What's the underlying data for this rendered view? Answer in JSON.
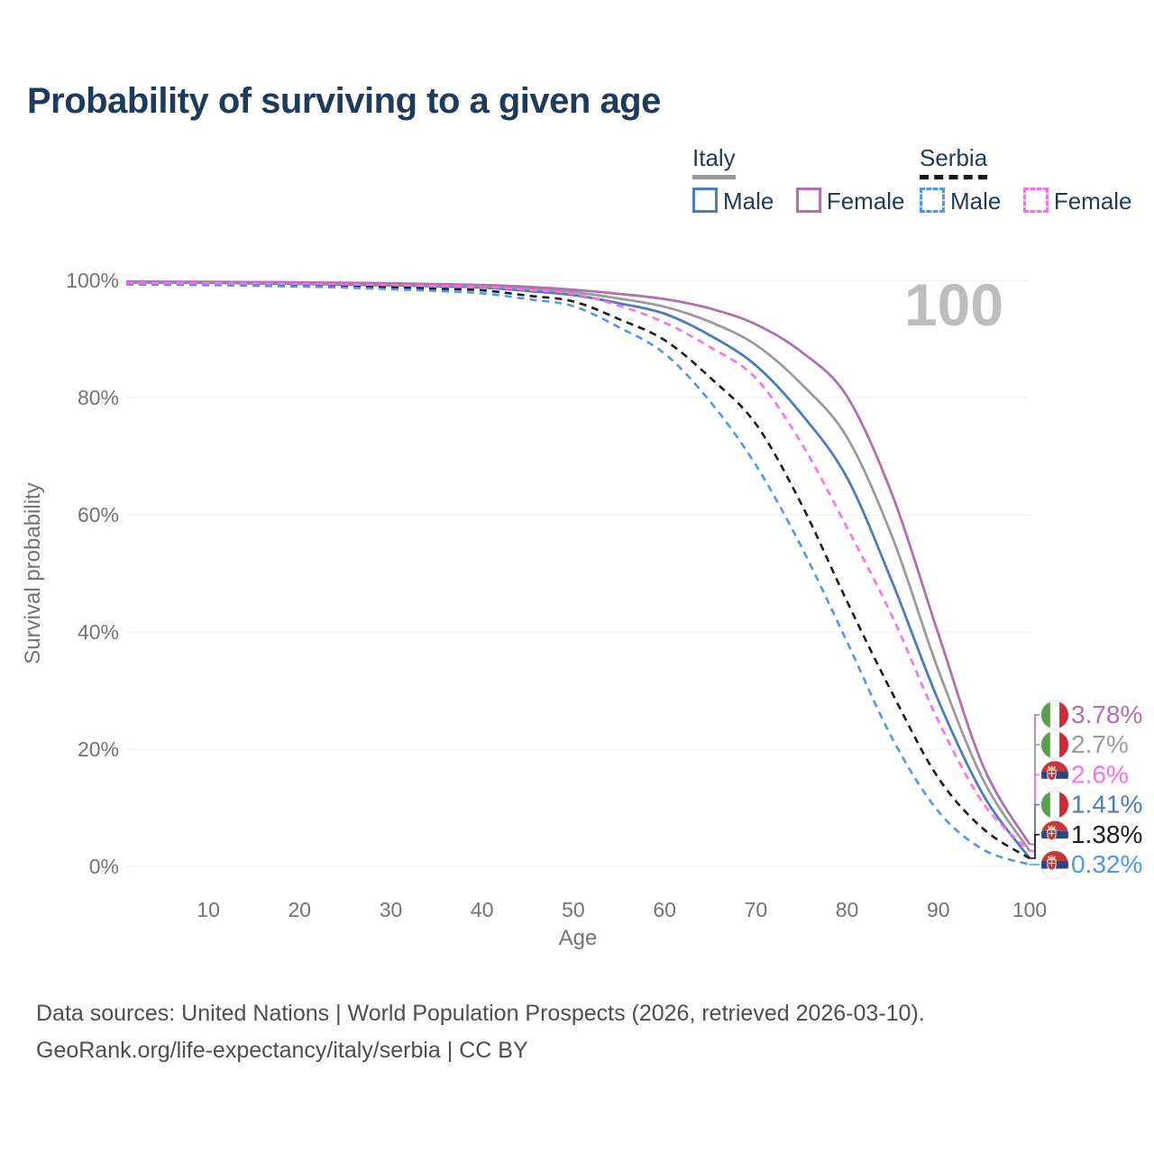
{
  "page": {
    "title": "Probability of surviving to a given age"
  },
  "legend": {
    "groups": [
      {
        "name": "Italy",
        "underline": "solid",
        "underline_color": "#9a9a9a",
        "items": [
          {
            "label": "Male",
            "color": "#4a7cc0",
            "dash": false
          },
          {
            "label": "Female",
            "color": "#b06fb0",
            "dash": false
          }
        ]
      },
      {
        "name": "Serbia",
        "underline": "dashed",
        "underline_color": "#161616",
        "items": [
          {
            "label": "Male",
            "color": "#4b97f5",
            "dash": true
          },
          {
            "label": "Female",
            "color": "#ff6ce4",
            "dash": true
          }
        ]
      }
    ]
  },
  "watermark": "100",
  "chart_data": {
    "type": "line",
    "title": "Probability of surviving to a given age",
    "xlabel": "Age",
    "ylabel": "Survival probability",
    "xlim": [
      1,
      100
    ],
    "ylim": [
      0,
      100
    ],
    "x_ticks": [
      10,
      20,
      30,
      40,
      50,
      60,
      70,
      80,
      90,
      100
    ],
    "y_ticks": [
      0,
      20,
      40,
      60,
      80,
      100
    ],
    "y_tick_suffix": "%",
    "grid": "horizontal",
    "legend_position": "top-right",
    "ages": [
      1,
      5,
      10,
      15,
      20,
      25,
      30,
      35,
      40,
      45,
      50,
      55,
      60,
      65,
      70,
      75,
      80,
      85,
      90,
      95,
      100
    ],
    "series": [
      {
        "name": "Italy Female",
        "country": "italy",
        "sex": "female",
        "style": "solid",
        "color": "#b06fb0",
        "end_label": "3.78%",
        "values": [
          99.8,
          99.77,
          99.74,
          99.7,
          99.65,
          99.58,
          99.5,
          99.36,
          99.2,
          98.9,
          98.4,
          97.7,
          96.8,
          95.2,
          92.5,
          87.8,
          80.2,
          63.2,
          39.7,
          16.8,
          3.78
        ]
      },
      {
        "name": "Italy Both sexes",
        "country": "italy",
        "sex": "both",
        "style": "solid",
        "color": "#9b9b9b",
        "end_label": "2.7%",
        "values": [
          99.7,
          99.68,
          99.65,
          99.6,
          99.5,
          99.42,
          99.3,
          99.15,
          99.0,
          98.6,
          98.0,
          96.9,
          95.5,
          92.9,
          89.0,
          82.3,
          73.2,
          56.0,
          33.5,
          14.5,
          2.7
        ]
      },
      {
        "name": "Serbia Female",
        "country": "serbia",
        "sex": "female",
        "style": "dashed",
        "color": "#ff6ce4",
        "end_label": "2.6%",
        "values": [
          99.6,
          99.57,
          99.53,
          99.47,
          99.4,
          99.3,
          99.2,
          99.05,
          98.9,
          98.4,
          97.7,
          95.7,
          92.8,
          88.6,
          83.3,
          72.2,
          57.8,
          42.5,
          24.8,
          10.6,
          2.6
        ]
      },
      {
        "name": "Italy Male",
        "country": "italy",
        "sex": "male",
        "style": "solid",
        "color": "#4a7cc0",
        "end_label": "1.41%",
        "values": [
          99.65,
          99.62,
          99.58,
          99.5,
          99.4,
          99.28,
          99.15,
          99.0,
          98.8,
          98.2,
          97.5,
          96.1,
          94.3,
          90.6,
          85.5,
          77.2,
          66.3,
          48.3,
          28.3,
          12.0,
          1.41
        ]
      },
      {
        "name": "Serbia Both sexes",
        "country": "serbia",
        "sex": "both",
        "style": "dashed",
        "color": "#1c1c1c",
        "end_label": "1.38%",
        "values": [
          99.45,
          99.4,
          99.35,
          99.25,
          99.1,
          98.97,
          98.8,
          98.57,
          98.3,
          97.4,
          96.4,
          93.4,
          89.8,
          83.4,
          75.5,
          61.8,
          45.2,
          29.4,
          15.1,
          6.3,
          1.38
        ]
      },
      {
        "name": "Serbia Male",
        "country": "serbia",
        "sex": "male",
        "style": "dashed",
        "color": "#4b97f5",
        "end_label": "0.32%",
        "values": [
          99.3,
          99.25,
          99.18,
          99.08,
          98.95,
          98.77,
          98.5,
          98.2,
          97.8,
          96.8,
          95.6,
          92.0,
          87.5,
          79.3,
          68.5,
          54.5,
          38.3,
          21.7,
          9.4,
          2.8,
          0.32
        ]
      }
    ],
    "flag_colors": {
      "italy_green": "#579f4b",
      "italy_white": "#ffffff",
      "italy_red": "#cd2b37",
      "serbia_red": "#c6363c",
      "serbia_blue": "#27477f",
      "serbia_white": "#ffffff"
    }
  },
  "footer": {
    "line1": "Data sources: United Nations | World Population Prospects (2026, retrieved 2026-03-10).",
    "line2": "GeoRank.org/life-expectancy/italy/serbia | CC BY"
  }
}
